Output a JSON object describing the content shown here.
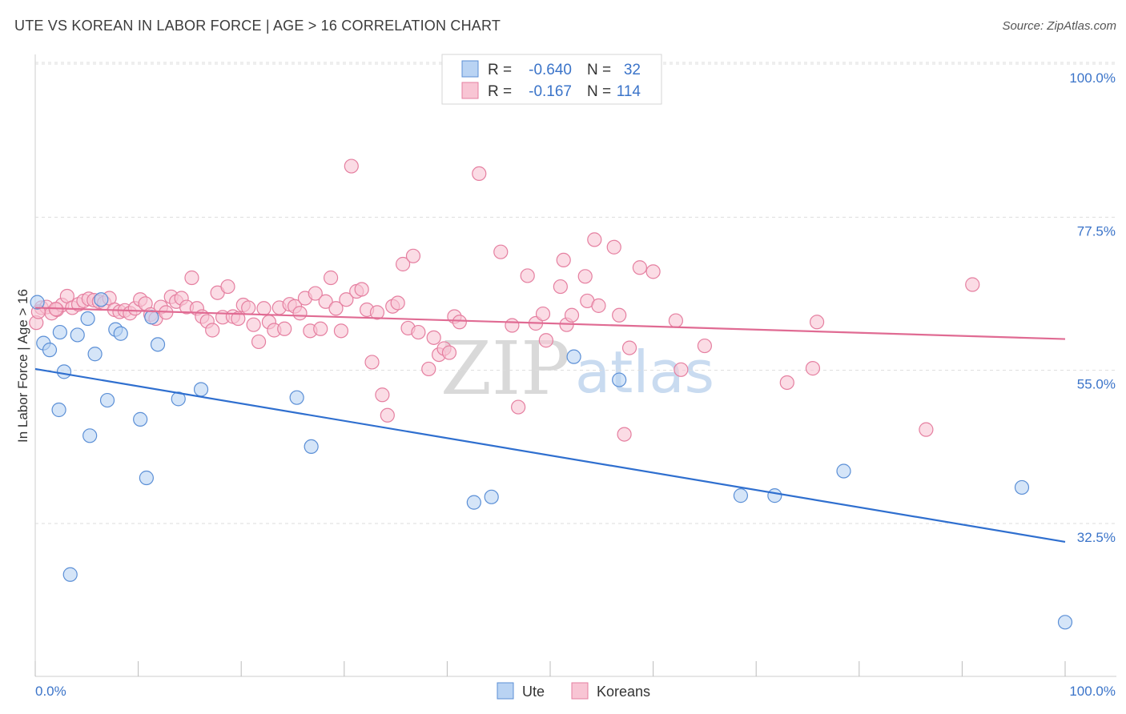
{
  "header": {
    "title": "UTE VS KOREAN IN LABOR FORCE | AGE > 16 CORRELATION CHART",
    "source": "Source: ZipAtlas.com"
  },
  "legend": {
    "rows": [
      {
        "r_label": "R =",
        "r_value": "-0.640",
        "n_label": "N =",
        "n_value": "32"
      },
      {
        "r_label": "R =",
        "r_value": "-0.167",
        "n_label": "N =",
        "n_value": "114"
      }
    ]
  },
  "bottom_legend": {
    "items": [
      "Ute",
      "Koreans"
    ]
  },
  "watermark": {
    "zip": "ZIP",
    "atlas": "atlas"
  },
  "colors": {
    "ute_fill": "#b9d3f3",
    "ute_stroke": "#5b8fd6",
    "ute_line": "#2f6fcf",
    "korean_fill": "#f8c5d4",
    "korean_stroke": "#e57fa0",
    "korean_line": "#e06b93",
    "tick_text": "#3b74c9",
    "grid": "#dddddd"
  },
  "chart_data": {
    "type": "scatter",
    "title": "UTE VS KOREAN IN LABOR FORCE | AGE > 16 CORRELATION CHART",
    "xlabel": "",
    "ylabel": "In Labor Force | Age > 16",
    "xlim": [
      0,
      100
    ],
    "ylim": [
      14,
      102
    ],
    "x_tick_labels": [
      "0.0%",
      "100.0%"
    ],
    "y_ticks": [
      32.5,
      55.0,
      77.5,
      100.0
    ],
    "y_tick_labels": [
      "32.5%",
      "55.0%",
      "77.5%",
      "100.0%"
    ],
    "legend_position": "top-center",
    "series": [
      {
        "name": "Ute",
        "r": -0.64,
        "n": 32,
        "trend": {
          "x": [
            0,
            100
          ],
          "y": [
            57.2,
            31.8
          ]
        },
        "points": [
          [
            0.2,
            67.0
          ],
          [
            0.8,
            61.0
          ],
          [
            1.4,
            60.0
          ],
          [
            2.3,
            51.2
          ],
          [
            2.4,
            62.6
          ],
          [
            2.8,
            56.8
          ],
          [
            3.4,
            27.0
          ],
          [
            4.1,
            62.2
          ],
          [
            5.1,
            64.6
          ],
          [
            5.3,
            47.4
          ],
          [
            5.8,
            59.4
          ],
          [
            6.4,
            67.4
          ],
          [
            7.0,
            52.6
          ],
          [
            7.8,
            63.0
          ],
          [
            8.3,
            62.4
          ],
          [
            10.2,
            49.8
          ],
          [
            10.8,
            41.2
          ],
          [
            11.3,
            64.8
          ],
          [
            11.9,
            60.8
          ],
          [
            13.9,
            52.8
          ],
          [
            16.1,
            54.2
          ],
          [
            25.4,
            53.0
          ],
          [
            26.8,
            45.8
          ],
          [
            42.6,
            37.6
          ],
          [
            44.3,
            38.4
          ],
          [
            52.3,
            59.0
          ],
          [
            56.7,
            55.6
          ],
          [
            68.5,
            38.6
          ],
          [
            71.8,
            38.6
          ],
          [
            78.5,
            42.2
          ],
          [
            95.8,
            39.8
          ],
          [
            100.0,
            20.0
          ]
        ]
      },
      {
        "name": "Koreans",
        "r": -0.167,
        "n": 114,
        "trend": {
          "x": [
            0,
            100
          ],
          "y": [
            66.2,
            61.6
          ]
        },
        "points": [
          [
            0.1,
            64.0
          ],
          [
            0.6,
            66.2
          ],
          [
            1.1,
            66.3
          ],
          [
            1.6,
            65.4
          ],
          [
            2.1,
            65.9
          ],
          [
            2.6,
            66.6
          ],
          [
            3.1,
            67.9
          ],
          [
            3.6,
            66.2
          ],
          [
            4.2,
            66.7
          ],
          [
            4.7,
            67.2
          ],
          [
            5.2,
            67.5
          ],
          [
            5.7,
            67.3
          ],
          [
            6.2,
            67.1
          ],
          [
            6.7,
            66.9
          ],
          [
            7.2,
            67.6
          ],
          [
            7.7,
            65.9
          ],
          [
            8.2,
            65.6
          ],
          [
            8.7,
            65.8
          ],
          [
            9.2,
            65.4
          ],
          [
            9.7,
            66.1
          ],
          [
            10.2,
            67.4
          ],
          [
            10.7,
            66.8
          ],
          [
            11.2,
            65.2
          ],
          [
            11.7,
            64.6
          ],
          [
            12.2,
            66.3
          ],
          [
            12.7,
            65.5
          ],
          [
            13.2,
            67.8
          ],
          [
            13.7,
            67.1
          ],
          [
            14.2,
            67.6
          ],
          [
            14.7,
            66.3
          ],
          [
            15.2,
            70.6
          ],
          [
            15.7,
            66.1
          ],
          [
            16.2,
            64.9
          ],
          [
            16.7,
            64.2
          ],
          [
            17.2,
            62.9
          ],
          [
            17.7,
            68.4
          ],
          [
            18.2,
            64.8
          ],
          [
            18.7,
            69.3
          ],
          [
            19.2,
            64.9
          ],
          [
            19.7,
            64.6
          ],
          [
            20.2,
            66.6
          ],
          [
            20.7,
            66.2
          ],
          [
            21.2,
            63.7
          ],
          [
            21.7,
            61.2
          ],
          [
            22.2,
            66.1
          ],
          [
            22.7,
            64.1
          ],
          [
            23.2,
            62.9
          ],
          [
            23.7,
            66.2
          ],
          [
            24.2,
            63.1
          ],
          [
            24.7,
            66.7
          ],
          [
            25.2,
            66.4
          ],
          [
            25.7,
            65.4
          ],
          [
            26.2,
            67.6
          ],
          [
            26.7,
            62.8
          ],
          [
            27.2,
            68.3
          ],
          [
            27.7,
            63.1
          ],
          [
            28.2,
            67.1
          ],
          [
            28.7,
            70.6
          ],
          [
            29.2,
            66.1
          ],
          [
            29.7,
            62.8
          ],
          [
            30.2,
            67.4
          ],
          [
            30.7,
            87.0
          ],
          [
            31.2,
            68.6
          ],
          [
            31.7,
            68.9
          ],
          [
            32.2,
            65.9
          ],
          [
            32.7,
            58.2
          ],
          [
            33.2,
            65.5
          ],
          [
            33.7,
            53.4
          ],
          [
            34.2,
            50.4
          ],
          [
            34.7,
            66.4
          ],
          [
            35.2,
            66.9
          ],
          [
            35.7,
            72.6
          ],
          [
            36.2,
            63.2
          ],
          [
            36.7,
            73.8
          ],
          [
            37.2,
            62.6
          ],
          [
            38.2,
            57.2
          ],
          [
            38.7,
            61.8
          ],
          [
            39.2,
            59.3
          ],
          [
            39.7,
            60.2
          ],
          [
            40.2,
            59.6
          ],
          [
            40.7,
            64.9
          ],
          [
            41.2,
            64.1
          ],
          [
            43.1,
            85.9
          ],
          [
            45.2,
            74.4
          ],
          [
            46.3,
            63.6
          ],
          [
            46.9,
            51.6
          ],
          [
            47.8,
            70.9
          ],
          [
            48.6,
            63.9
          ],
          [
            49.3,
            65.3
          ],
          [
            49.6,
            61.4
          ],
          [
            51.0,
            69.3
          ],
          [
            51.3,
            73.2
          ],
          [
            51.6,
            63.7
          ],
          [
            52.1,
            65.1
          ],
          [
            53.4,
            70.8
          ],
          [
            53.6,
            67.2
          ],
          [
            54.3,
            76.2
          ],
          [
            54.7,
            66.5
          ],
          [
            56.2,
            75.1
          ],
          [
            56.7,
            65.1
          ],
          [
            57.2,
            47.6
          ],
          [
            57.7,
            60.3
          ],
          [
            58.7,
            72.1
          ],
          [
            60.0,
            71.5
          ],
          [
            62.2,
            64.3
          ],
          [
            62.7,
            57.1
          ],
          [
            65.0,
            60.6
          ],
          [
            73.0,
            55.2
          ],
          [
            75.9,
            64.1
          ],
          [
            75.5,
            57.3
          ],
          [
            86.5,
            48.3
          ],
          [
            91.0,
            69.6
          ],
          [
            0.3,
            65.6
          ],
          [
            2.0,
            66.0
          ]
        ]
      }
    ]
  }
}
